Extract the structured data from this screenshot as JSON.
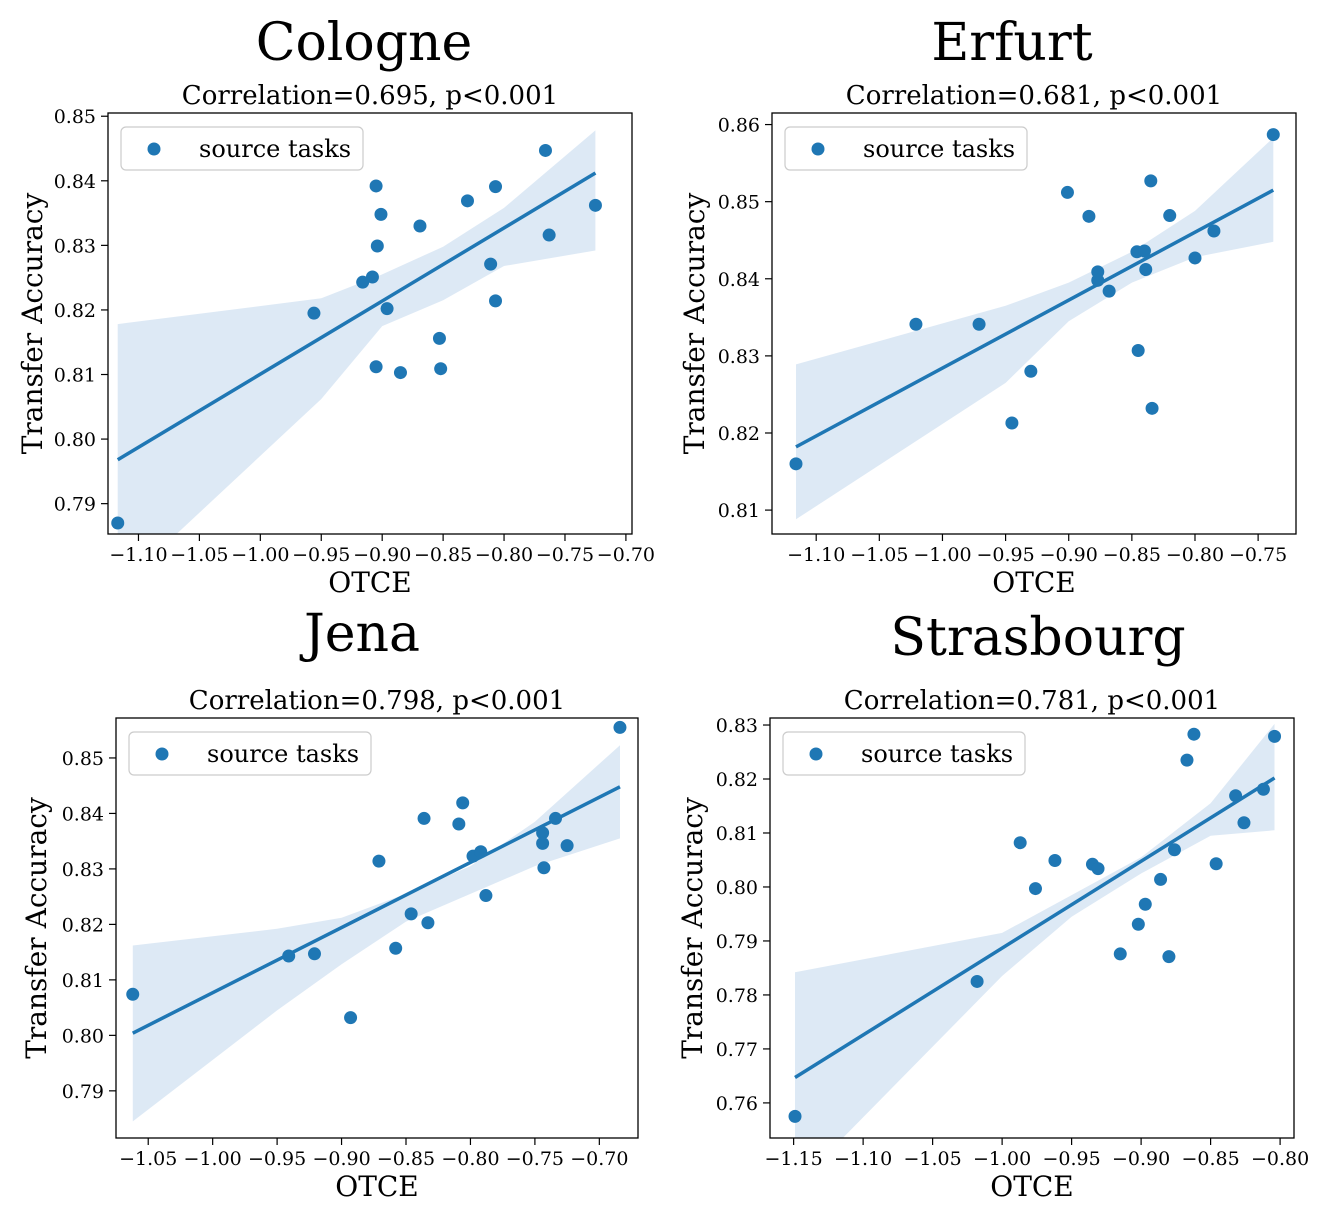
{
  "colors": {
    "series": "#1f77b4",
    "band": "#c6dbef",
    "axis": "#000000"
  },
  "chart_data": [
    {
      "type": "scatter",
      "panel_title": "Cologne",
      "title": "Correlation=0.695, p<0.001",
      "xlabel": "OTCE",
      "ylabel": "Transfer Accuracy",
      "xlim": [
        -1.125,
        -0.695
      ],
      "ylim": [
        0.7853,
        0.8505
      ],
      "xticks": [
        -1.1,
        -1.05,
        -1.0,
        -0.95,
        -0.9,
        -0.85,
        -0.8,
        -0.75,
        -0.7
      ],
      "xtick_labels": [
        "−1.10",
        "−1.05",
        "−1.00",
        "−0.95",
        "−0.90",
        "−0.85",
        "−0.80",
        "−0.75",
        "−0.70"
      ],
      "yticks": [
        0.79,
        0.8,
        0.81,
        0.82,
        0.83,
        0.84,
        0.85
      ],
      "ytick_labels": [
        "0.79",
        "0.80",
        "0.81",
        "0.82",
        "0.83",
        "0.84",
        "0.85"
      ],
      "legend": {
        "label": "source tasks",
        "position": "upper-left"
      },
      "series": [
        {
          "name": "source tasks",
          "x": [
            -1.117,
            -0.956,
            -0.916,
            -0.908,
            -0.905,
            -0.904,
            -0.905,
            -0.901,
            -0.896,
            -0.885,
            -0.869,
            -0.853,
            -0.852,
            -0.83,
            -0.811,
            -0.807,
            -0.807,
            -0.766,
            -0.763,
            -0.725
          ],
          "y": [
            0.787,
            0.8195,
            0.8243,
            0.8251,
            0.8112,
            0.8299,
            0.8392,
            0.8348,
            0.8202,
            0.8103,
            0.833,
            0.8156,
            0.8109,
            0.8369,
            0.8271,
            0.8214,
            0.8391,
            0.8447,
            0.8316,
            0.8362
          ]
        }
      ],
      "fit": {
        "x": [
          -1.117,
          -0.725
        ],
        "y": [
          0.7968,
          0.8412
        ]
      },
      "band": {
        "x": [
          -1.117,
          -0.95,
          -0.9,
          -0.85,
          -0.8,
          -0.725
        ],
        "lower": [
          0.7768,
          0.8062,
          0.8175,
          0.8215,
          0.8268,
          0.8292
        ],
        "upper": [
          0.8178,
          0.8218,
          0.8255,
          0.8298,
          0.8358,
          0.8478
        ]
      }
    },
    {
      "type": "scatter",
      "panel_title": "Erfurt",
      "title": "Correlation=0.681, p<0.001",
      "xlabel": "OTCE",
      "ylabel": "Transfer Accuracy",
      "xlim": [
        -1.135,
        -0.72
      ],
      "ylim": [
        0.8069,
        0.8615
      ],
      "xticks": [
        -1.1,
        -1.05,
        -1.0,
        -0.95,
        -0.9,
        -0.85,
        -0.8,
        -0.75
      ],
      "xtick_labels": [
        "−1.10",
        "−1.05",
        "−1.00",
        "−0.95",
        "−0.90",
        "−0.85",
        "−0.80",
        "−0.75"
      ],
      "yticks": [
        0.81,
        0.82,
        0.83,
        0.84,
        0.85,
        0.86
      ],
      "ytick_labels": [
        "0.81",
        "0.82",
        "0.83",
        "0.84",
        "0.85",
        "0.86"
      ],
      "legend": {
        "label": "source tasks",
        "position": "upper-left"
      },
      "series": [
        {
          "name": "source tasks",
          "x": [
            -1.116,
            -1.021,
            -0.971,
            -0.945,
            -0.93,
            -0.901,
            -0.884,
            -0.877,
            -0.877,
            -0.868,
            -0.846,
            -0.845,
            -0.84,
            -0.839,
            -0.835,
            -0.834,
            -0.82,
            -0.8,
            -0.785,
            -0.738
          ],
          "y": [
            0.816,
            0.8341,
            0.8341,
            0.8213,
            0.828,
            0.8512,
            0.8481,
            0.8409,
            0.8398,
            0.8384,
            0.8435,
            0.8307,
            0.8436,
            0.8412,
            0.8527,
            0.8232,
            0.8482,
            0.8427,
            0.8462,
            0.8587
          ]
        }
      ],
      "fit": {
        "x": [
          -1.116,
          -0.738
        ],
        "y": [
          0.8182,
          0.8515
        ]
      },
      "band": {
        "x": [
          -1.116,
          -0.95,
          -0.9,
          -0.85,
          -0.8,
          -0.738
        ],
        "lower": [
          0.8088,
          0.8265,
          0.8345,
          0.8395,
          0.8428,
          0.8448
        ],
        "upper": [
          0.8289,
          0.8365,
          0.8395,
          0.8435,
          0.8488,
          0.8583
        ]
      }
    },
    {
      "type": "scatter",
      "panel_title": "Jena",
      "title": "Correlation=0.798, p<0.001",
      "xlabel": "OTCE",
      "ylabel": "Transfer Accuracy",
      "xlim": [
        -1.075,
        -0.67
      ],
      "ylim": [
        0.7815,
        0.8572
      ],
      "xticks": [
        -1.05,
        -1.0,
        -0.95,
        -0.9,
        -0.85,
        -0.8,
        -0.75,
        -0.7
      ],
      "xtick_labels": [
        "−1.05",
        "−1.00",
        "−0.95",
        "−0.90",
        "−0.85",
        "−0.80",
        "−0.75",
        "−0.70"
      ],
      "yticks": [
        0.79,
        0.8,
        0.81,
        0.82,
        0.83,
        0.84,
        0.85
      ],
      "ytick_labels": [
        "0.79",
        "0.80",
        "0.81",
        "0.82",
        "0.83",
        "0.84",
        "0.85"
      ],
      "legend": {
        "label": "source tasks",
        "position": "upper-left"
      },
      "series": [
        {
          "name": "source tasks",
          "x": [
            -1.062,
            -0.941,
            -0.921,
            -0.893,
            -0.871,
            -0.858,
            -0.846,
            -0.836,
            -0.833,
            -0.809,
            -0.806,
            -0.798,
            -0.792,
            -0.788,
            -0.744,
            -0.744,
            -0.743,
            -0.734,
            -0.725,
            -0.684
          ],
          "y": [
            0.8074,
            0.8143,
            0.8147,
            0.8032,
            0.8314,
            0.8157,
            0.8219,
            0.8391,
            0.8203,
            0.8381,
            0.8419,
            0.8323,
            0.8331,
            0.8252,
            0.8365,
            0.8346,
            0.8302,
            0.8391,
            0.8342,
            0.8555
          ]
        }
      ],
      "fit": {
        "x": [
          -1.062,
          -0.684
        ],
        "y": [
          0.8004,
          0.8448
        ]
      },
      "band": {
        "x": [
          -1.062,
          -0.95,
          -0.9,
          -0.85,
          -0.8,
          -0.75,
          -0.684
        ],
        "lower": [
          0.7845,
          0.8045,
          0.8128,
          0.8205,
          0.8255,
          0.8305,
          0.8355
        ],
        "upper": [
          0.8162,
          0.8192,
          0.8212,
          0.8255,
          0.8305,
          0.8385,
          0.8523
        ]
      }
    },
    {
      "type": "scatter",
      "panel_title": "Strasbourg",
      "title": "Correlation=0.781, p<0.001",
      "xlabel": "OTCE",
      "ylabel": "Transfer Accuracy",
      "xlim": [
        -1.167,
        -0.79
      ],
      "ylim": [
        0.7535,
        0.8313
      ],
      "xticks": [
        -1.15,
        -1.1,
        -1.05,
        -1.0,
        -0.95,
        -0.9,
        -0.85,
        -0.8
      ],
      "xtick_labels": [
        "−1.15",
        "−1.10",
        "−1.05",
        "−1.00",
        "−0.95",
        "−0.90",
        "−0.85",
        "−0.80"
      ],
      "yticks": [
        0.76,
        0.77,
        0.78,
        0.79,
        0.8,
        0.81,
        0.82,
        0.83
      ],
      "ytick_labels": [
        "0.76",
        "0.77",
        "0.78",
        "0.79",
        "0.80",
        "0.81",
        "0.82",
        "0.83"
      ],
      "legend": {
        "label": "source tasks",
        "position": "upper-left"
      },
      "series": [
        {
          "name": "source tasks",
          "x": [
            -1.149,
            -1.018,
            -0.987,
            -0.976,
            -0.962,
            -0.935,
            -0.931,
            -0.915,
            -0.902,
            -0.897,
            -0.886,
            -0.88,
            -0.876,
            -0.867,
            -0.862,
            -0.846,
            -0.832,
            -0.826,
            -0.812,
            -0.804
          ],
          "y": [
            0.7575,
            0.7825,
            0.8082,
            0.7997,
            0.8049,
            0.8042,
            0.8034,
            0.7876,
            0.7931,
            0.7968,
            0.8014,
            0.7871,
            0.8069,
            0.8235,
            0.8283,
            0.8043,
            0.8169,
            0.8119,
            0.8181,
            0.8279
          ]
        }
      ],
      "fit": {
        "x": [
          -1.149,
          -0.804
        ],
        "y": [
          0.7647,
          0.8202
        ]
      },
      "band": {
        "x": [
          -1.149,
          -1.0,
          -0.95,
          -0.9,
          -0.85,
          -0.804
        ],
        "lower": [
          0.7445,
          0.7835,
          0.7945,
          0.8025,
          0.8095,
          0.8105
        ],
        "upper": [
          0.7842,
          0.7915,
          0.7985,
          0.8055,
          0.8155,
          0.8302
        ]
      }
    }
  ]
}
